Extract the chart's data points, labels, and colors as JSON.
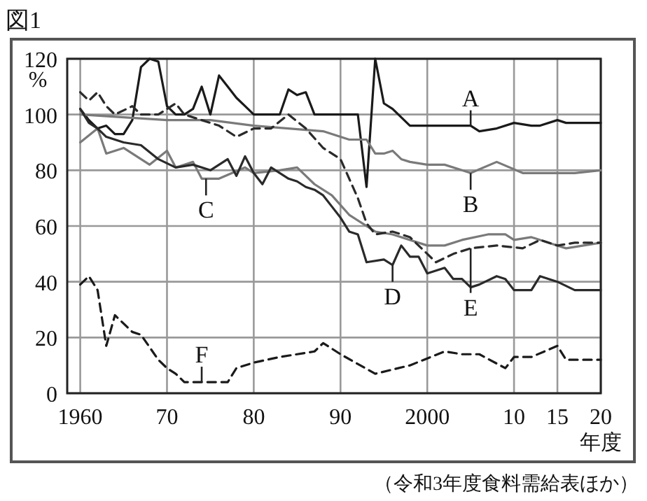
{
  "chart_data": {
    "type": "line",
    "title": "図1",
    "ylabel": "%",
    "xlabel": "年度",
    "xlim": [
      1958.5,
      2020
    ],
    "ylim": [
      0,
      120
    ],
    "xticks": [
      1960,
      {
        "value": 1970,
        "label": "70"
      },
      {
        "value": 1980,
        "label": "80"
      },
      {
        "value": 1990,
        "label": "90"
      },
      2000,
      {
        "value": 2010,
        "label": "10"
      },
      {
        "value": 2015,
        "label": "15"
      },
      {
        "value": 2020,
        "label": "20"
      }
    ],
    "yticks": [
      0,
      20,
      40,
      60,
      80,
      100,
      120
    ],
    "grid": true,
    "series": [
      {
        "color": "#1a1a1a",
        "line_style": "solid",
        "x": [
          1960,
          1961,
          1962,
          1963,
          1964,
          1965,
          1966,
          1967,
          1968,
          1969,
          1970,
          1971,
          1972,
          1973,
          1974,
          1975,
          1976,
          1977,
          1978,
          1979,
          1980,
          1981,
          1982,
          1983,
          1984,
          1985,
          1986,
          1987,
          1990,
          1992,
          1993,
          1994,
          1995,
          1996,
          1997,
          1998,
          2000,
          2002,
          2005,
          2006,
          2008,
          2010,
          2012,
          2013,
          2015,
          2016,
          2020
        ],
        "values": [
          102,
          98,
          95,
          96,
          93,
          93,
          98,
          117,
          120,
          119,
          103,
          100,
          100,
          102,
          110,
          100,
          114,
          110,
          106,
          103,
          100,
          100,
          100,
          100,
          109,
          107,
          108,
          100,
          100,
          100,
          74,
          120,
          104,
          102,
          99,
          96,
          96,
          96,
          96,
          94,
          95,
          97,
          96,
          96,
          98,
          97,
          97
        ]
      },
      {
        "color": "#7a7a7a",
        "line_style": "solid",
        "x": [
          1960,
          1965,
          1970,
          1975,
          1980,
          1984,
          1988,
          1991,
          1993,
          1994,
          1995,
          1996,
          1997,
          1998,
          2000,
          2002,
          2004,
          2005,
          2008,
          2011,
          2014,
          2017,
          2020
        ],
        "values": [
          100,
          99,
          98,
          98,
          96,
          95,
          94,
          91,
          91,
          86,
          86,
          87,
          84,
          83,
          82,
          82,
          80,
          79,
          83,
          79,
          79,
          79,
          80
        ]
      },
      {
        "color": "#7a7a7a",
        "line_style": "solid",
        "x": [
          1960,
          1962,
          1963,
          1965,
          1968,
          1970,
          1971,
          1973,
          1974,
          1976,
          1979,
          1980,
          1983,
          1985,
          1987,
          1989,
          1991,
          1994,
          1996,
          2000,
          2002,
          2004,
          2007,
          2009,
          2010,
          2012,
          2014,
          2016,
          2020
        ],
        "values": [
          90,
          95,
          86,
          88,
          82,
          87,
          81,
          83,
          77,
          77,
          81,
          79,
          80,
          81,
          75,
          71,
          64,
          58,
          57,
          53,
          53,
          55,
          57,
          57,
          55,
          56,
          54,
          52,
          54
        ]
      },
      {
        "color": "#2a2a2a",
        "line_style": "solid",
        "x": [
          1960,
          1961,
          1962,
          1963,
          1965,
          1967,
          1969,
          1971,
          1973,
          1975,
          1977,
          1978,
          1979,
          1980,
          1981,
          1982,
          1984,
          1985,
          1986,
          1987,
          1988,
          1989,
          1990,
          1991,
          1992,
          1993,
          1995,
          1996,
          1997,
          1998,
          1999,
          2000,
          2002,
          2003,
          2004,
          2005,
          2006,
          2008,
          2009,
          2010,
          2012,
          2013,
          2015,
          2017,
          2020
        ],
        "values": [
          102,
          97,
          95,
          92,
          90,
          89,
          84,
          81,
          82,
          80,
          84,
          78,
          85,
          79,
          75,
          81,
          77,
          76,
          74,
          73,
          71,
          67,
          63,
          58,
          57,
          47,
          48,
          46,
          53,
          49,
          49,
          43,
          45,
          41,
          41,
          38,
          39,
          42,
          41,
          37,
          37,
          42,
          40,
          37,
          37
        ]
      },
      {
        "color": "#2a2a2a",
        "line_style": "dashed",
        "x": [
          1960,
          1961,
          1962,
          1963,
          1964,
          1966,
          1967,
          1969,
          1971,
          1972,
          1974,
          1976,
          1978,
          1980,
          1982,
          1984,
          1986,
          1988,
          1990,
          1992,
          1993,
          1994,
          1996,
          1998,
          2001,
          2003,
          2005,
          2008,
          2011,
          2013,
          2015,
          2017,
          2020
        ],
        "values": [
          108,
          105,
          108,
          103,
          100,
          103,
          100,
          100,
          104,
          100,
          98,
          96,
          92,
          95,
          95,
          100,
          95,
          88,
          84,
          70,
          61,
          57,
          58,
          56,
          47,
          50,
          52,
          53,
          52,
          55,
          53,
          54,
          54
        ]
      },
      {
        "color": "#1a1a1a",
        "line_style": "dashed",
        "x": [
          1960,
          1961,
          1962,
          1963,
          1964,
          1966,
          1967,
          1969,
          1970,
          1971,
          1972,
          1975,
          1977,
          1978,
          1980,
          1983,
          1985,
          1987,
          1988,
          1990,
          1994,
          1998,
          2002,
          2004,
          2006,
          2009,
          2010,
          2012,
          2015,
          2016,
          2020
        ],
        "values": [
          39,
          42,
          37,
          17,
          28,
          22,
          21,
          12,
          9,
          7,
          4,
          4,
          4,
          9,
          11,
          13,
          14,
          15,
          18,
          14,
          7,
          10,
          15,
          14,
          14,
          9,
          13,
          13,
          17,
          12,
          12
        ]
      }
    ],
    "annotations": [
      {
        "text": "A",
        "x": 2005,
        "y": 96
      },
      {
        "text": "B",
        "x": 2005,
        "y": 79
      },
      {
        "text": "C",
        "x": 1974.5,
        "y": 77
      },
      {
        "text": "D",
        "x": 1996,
        "y": 46
      },
      {
        "text": "E",
        "x": 2005,
        "y": 52
      },
      {
        "text": "F",
        "x": 1974,
        "y": 4
      },
      "（令和3年度食料需給表ほか）"
    ]
  }
}
